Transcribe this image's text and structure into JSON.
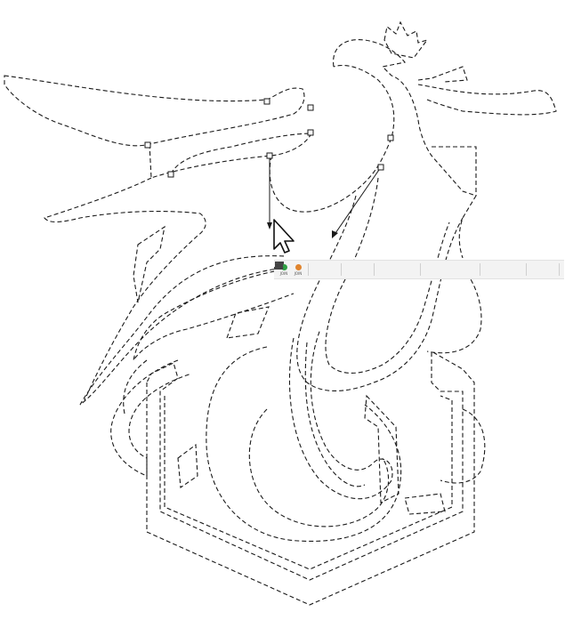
{
  "canvas": {
    "background": "#ffffff",
    "stroke_color": "#1a1a1a"
  },
  "toolbar": {
    "join_left": {
      "label": "JOIN",
      "color": "#2ea043"
    },
    "join_right": {
      "label": "JOIN",
      "color": "#e0842e"
    },
    "icons": [
      "break-path-icon",
      "split-icon",
      "line-segment-icon",
      "curve-segment-icon",
      "corner-node-icon",
      "smooth-node-icon",
      "symmetric-node-icon",
      "add-node-icon",
      "delete-node-icon",
      "join-nodes-icon",
      "break-node-icon",
      "object-to-path-icon",
      "stroke-to-path-icon",
      "show-handles-icon",
      "show-outline-icon",
      "show-path-icon",
      "clip-icon",
      "mask-icon"
    ]
  },
  "cursor": {
    "icon": "mouse-pointer-icon"
  }
}
